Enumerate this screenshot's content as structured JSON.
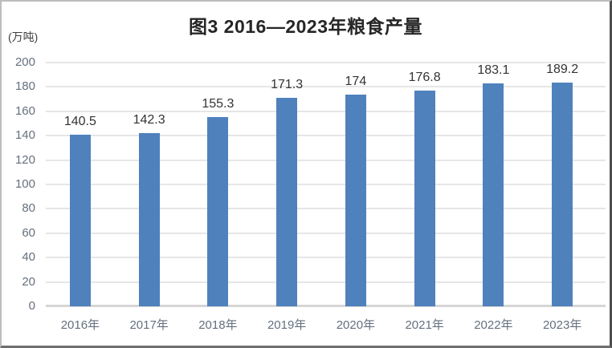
{
  "chart_data": {
    "type": "bar",
    "title": "图3 2016—2023年粮食产量",
    "unit_label": "(万吨)",
    "categories": [
      "2016年",
      "2017年",
      "2018年",
      "2019年",
      "2020年",
      "2021年",
      "2022年",
      "2023年"
    ],
    "values": [
      140.5,
      142.3,
      155.3,
      171.3,
      174,
      176.8,
      183.1,
      189.2
    ],
    "value_labels": [
      "140.5",
      "142.3",
      "155.3",
      "171.3",
      "174",
      "176.8",
      "183.1",
      "189.2"
    ],
    "xlabel": "",
    "ylabel": "(万吨)",
    "ylim": [
      0,
      200
    ],
    "yticks": [
      0,
      20,
      40,
      60,
      80,
      100,
      120,
      140,
      160,
      180,
      200
    ],
    "grid": true,
    "legend_position": "none",
    "bar_color": "#4F81BD",
    "gridline_color": "#e6e6e6",
    "axis_label_color": "#65707e",
    "data_label_color": "#333333"
  }
}
